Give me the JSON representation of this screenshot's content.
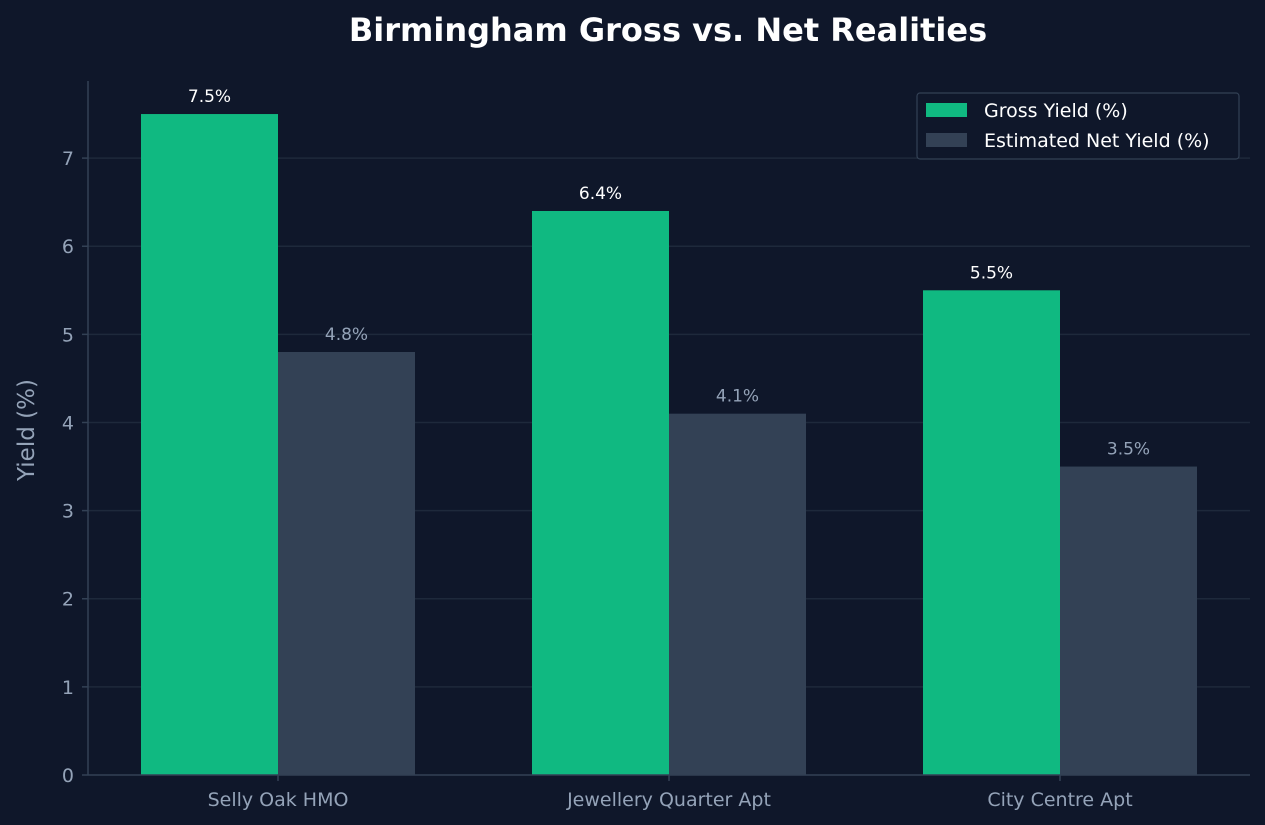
{
  "chart_data": {
    "type": "bar",
    "title": "Birmingham Gross vs. Net Realities",
    "xlabel": "",
    "ylabel": "Yield (%)",
    "categories": [
      "Selly Oak HMO",
      "Jewellery Quarter Apt",
      "City Centre Apt"
    ],
    "series": [
      {
        "name": "Gross Yield (%)",
        "values": [
          7.5,
          6.4,
          5.5
        ],
        "labels": [
          "7.5%",
          "6.4%",
          "5.5%"
        ],
        "color": "#10b981",
        "label_color": "#ffffff"
      },
      {
        "name": "Estimated Net Yield (%)",
        "values": [
          4.8,
          4.1,
          3.5
        ],
        "labels": [
          "4.8%",
          "4.1%",
          "3.5%"
        ],
        "color": "#334155",
        "label_color": "#94a3b8"
      }
    ],
    "ylim": [
      0,
      7.875
    ],
    "yticks": [
      0,
      1,
      2,
      3,
      4,
      5,
      6,
      7
    ],
    "grid": true,
    "legend_position": "top-right",
    "colors": {
      "background": "#0f172a",
      "grid": "#1e293b",
      "axis": "#334155",
      "text": "#94a3b8",
      "title": "#ffffff"
    }
  }
}
